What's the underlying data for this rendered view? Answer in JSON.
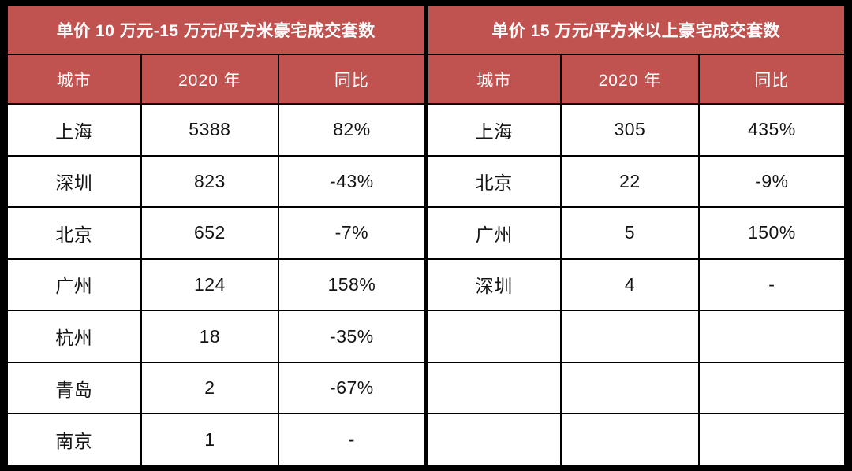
{
  "colors": {
    "header_bg": "#c05350",
    "header_text": "#ffffff",
    "body_text": "#141414",
    "grid_line": "#000000",
    "cell_bg": "#ffffff",
    "frame": "#000000"
  },
  "chart_data": [
    {
      "type": "table",
      "title": "单价 10 万元-15 万元/平方米豪宅成交套数",
      "columns": [
        "城市",
        "2020 年",
        "同比"
      ],
      "rows": [
        [
          "上海",
          "5388",
          "82%"
        ],
        [
          "深圳",
          "823",
          "-43%"
        ],
        [
          "北京",
          "652",
          "-7%"
        ],
        [
          "广州",
          "124",
          "158%"
        ],
        [
          "杭州",
          "18",
          "-35%"
        ],
        [
          "青岛",
          "2",
          "-67%"
        ],
        [
          "南京",
          "1",
          "-"
        ]
      ]
    },
    {
      "type": "table",
      "title": "单价 15 万元/平方米以上豪宅成交套数",
      "columns": [
        "城市",
        "2020 年",
        "同比"
      ],
      "rows": [
        [
          "上海",
          "305",
          "435%"
        ],
        [
          "北京",
          "22",
          "-9%"
        ],
        [
          "广州",
          "5",
          "150%"
        ],
        [
          "深圳",
          "4",
          "-"
        ],
        [
          "",
          "",
          ""
        ],
        [
          "",
          "",
          ""
        ],
        [
          "",
          "",
          ""
        ]
      ]
    }
  ]
}
